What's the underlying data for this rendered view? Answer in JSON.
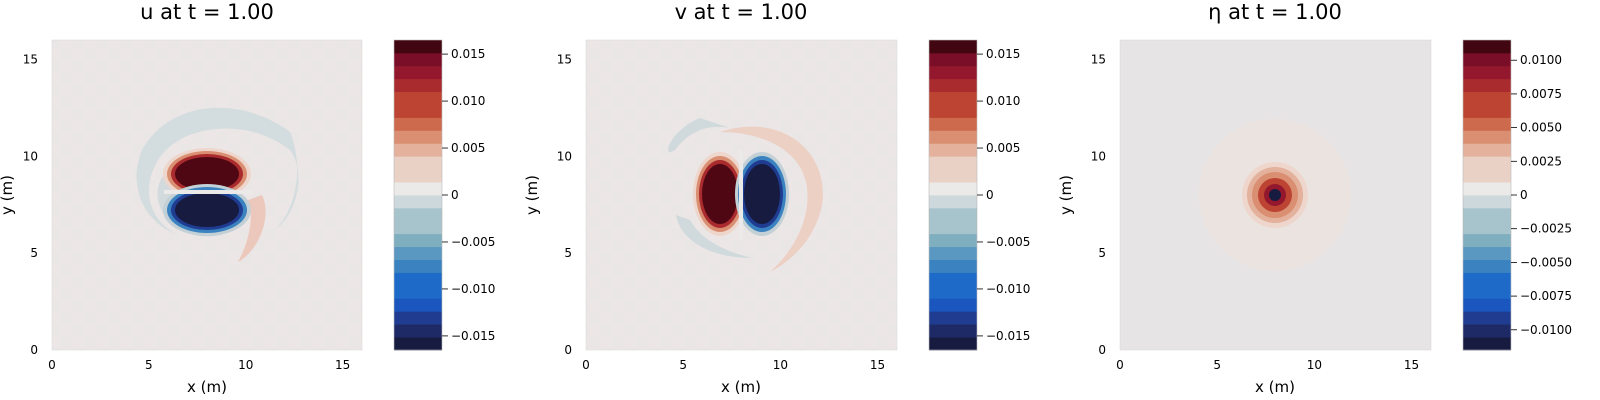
{
  "chart_data": [
    {
      "type": "heatmap",
      "variable": "u",
      "title": "u at t = 1.00",
      "xlabel": "x (m)",
      "ylabel": "y (m)",
      "xlim": [
        0,
        16
      ],
      "ylim": [
        0,
        16
      ],
      "x_ticks": [
        "0",
        "5",
        "10",
        "15"
      ],
      "y_ticks": [
        "0",
        "5",
        "10",
        "15"
      ],
      "colorbar": {
        "range": [
          -0.0165,
          0.0165
        ],
        "levels": 24,
        "ticks": [
          0.015,
          0.01,
          0.005,
          0,
          -0.005,
          -0.01,
          -0.015
        ],
        "tick_labels": [
          "0.015",
          "0.010",
          "0.005",
          "0",
          "−0.005",
          "−0.010",
          "−0.015"
        ]
      },
      "features": [
        {
          "label": "positive lobe",
          "center": [
            8.0,
            8.9
          ],
          "value": 0.0165
        },
        {
          "label": "negative lobe",
          "center": [
            8.0,
            7.2
          ],
          "value": -0.0165
        }
      ]
    },
    {
      "type": "heatmap",
      "variable": "v",
      "title": "v at t = 1.00",
      "xlabel": "x (m)",
      "ylabel": "y (m)",
      "xlim": [
        0,
        16
      ],
      "ylim": [
        0,
        16
      ],
      "x_ticks": [
        "0",
        "5",
        "10",
        "15"
      ],
      "y_ticks": [
        "0",
        "5",
        "10",
        "15"
      ],
      "colorbar": {
        "range": [
          -0.0165,
          0.0165
        ],
        "levels": 24,
        "ticks": [
          0.015,
          0.01,
          0.005,
          0,
          -0.005,
          -0.01,
          -0.015
        ],
        "tick_labels": [
          "0.015",
          "0.010",
          "0.005",
          "0",
          "−0.005",
          "−0.010",
          "−0.015"
        ]
      },
      "features": [
        {
          "label": "positive lobe",
          "center": [
            7.1,
            8.0
          ],
          "value": 0.0165
        },
        {
          "label": "negative lobe",
          "center": [
            8.9,
            8.0
          ],
          "value": -0.0165
        }
      ]
    },
    {
      "type": "heatmap",
      "variable": "eta",
      "title": "η at t = 1.00",
      "xlabel": "x (m)",
      "ylabel": "y (m)",
      "xlim": [
        0,
        16
      ],
      "ylim": [
        0,
        16
      ],
      "x_ticks": [
        "0",
        "5",
        "10",
        "15"
      ],
      "y_ticks": [
        "0",
        "5",
        "10",
        "15"
      ],
      "colorbar": {
        "range": [
          -0.0115,
          0.0115
        ],
        "levels": 24,
        "ticks": [
          0.01,
          0.0075,
          0.005,
          0.0025,
          0,
          -0.0025,
          -0.005,
          -0.0075,
          -0.01
        ],
        "tick_labels": [
          "0.0100",
          "0.0075",
          "0.0050",
          "0.0025",
          "0",
          "−0.0025",
          "−0.0050",
          "−0.0075",
          "−0.0100"
        ]
      },
      "features": [
        {
          "label": "central peak",
          "center": [
            8.0,
            8.0
          ],
          "value": 0.0115
        }
      ]
    }
  ],
  "colormap": [
    "#161b3f",
    "#1d2a66",
    "#1f3c91",
    "#1a56bd",
    "#1e6ac8",
    "#3b82c0",
    "#5a98c2",
    "#7faebf",
    "#a7c3cb",
    "#cdd8dc",
    "#eceae8",
    "#e9d2c5",
    "#e3b19c",
    "#da8f72",
    "#cd6a4e",
    "#bd4432",
    "#a92b2d",
    "#93182e",
    "#7a0e28",
    "#420611"
  ]
}
